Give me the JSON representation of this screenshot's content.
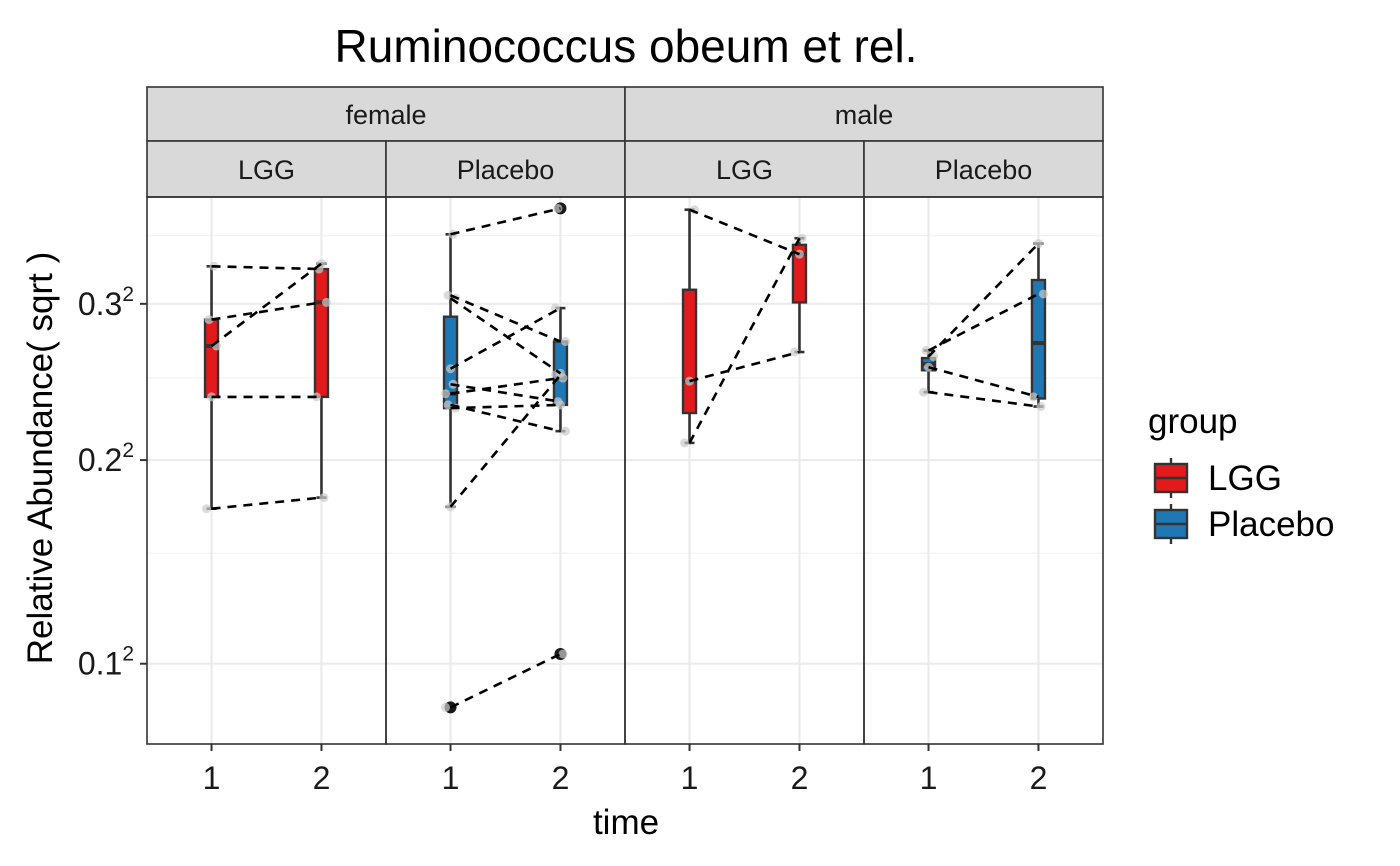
{
  "chart_data": {
    "type": "boxplot",
    "title": "Ruminococcus obeum et rel.",
    "xlabel": "time",
    "ylabel": "Relative Abundance( sqrt )",
    "y_scale": "sqrt",
    "ylim": [
      0.07,
      0.38
    ],
    "y_ticks": [
      {
        "value": 0.1,
        "base": "0.1",
        "exp": "2"
      },
      {
        "value": 0.2,
        "base": "0.2",
        "exp": "2"
      },
      {
        "value": 0.3,
        "base": "0.3",
        "exp": "2"
      }
    ],
    "x_categories": [
      "1",
      "2"
    ],
    "grid": true,
    "legend": {
      "title": "group",
      "position": "right",
      "entries": [
        {
          "name": "LGG",
          "color": "#E31A1C"
        },
        {
          "name": "Placebo",
          "color": "#1F78B4"
        }
      ]
    },
    "panels": [
      {
        "sex": "female",
        "group": "LGG",
        "color": "#E31A1C",
        "boxes": [
          {
            "time": "1",
            "whisker_low": 0.173,
            "q1": 0.238,
            "median": 0.271,
            "q3": 0.289,
            "whisker_high": 0.327,
            "outliers": []
          },
          {
            "time": "2",
            "whisker_low": 0.179,
            "q1": 0.238,
            "median": 0.301,
            "q3": 0.325,
            "whisker_high": 0.329,
            "outliers": []
          }
        ],
        "subjects": [
          [
            0.173,
            0.179
          ],
          [
            0.238,
            0.238
          ],
          [
            0.271,
            0.329
          ],
          [
            0.289,
            0.301
          ],
          [
            0.327,
            0.325
          ]
        ]
      },
      {
        "sex": "female",
        "group": "Placebo",
        "color": "#1F78B4",
        "boxes": [
          {
            "time": "1",
            "whisker_low": 0.174,
            "q1": 0.231,
            "median": 0.24,
            "q3": 0.291,
            "whisker_high": 0.351,
            "outliers": [
              0.083
            ]
          },
          {
            "time": "2",
            "whisker_low": 0.217,
            "q1": 0.233,
            "median": 0.25,
            "q3": 0.274,
            "whisker_high": 0.297,
            "outliers": [
              0.104,
              0.371
            ]
          }
        ],
        "subjects": [
          [
            0.083,
            0.104
          ],
          [
            0.174,
            0.252
          ],
          [
            0.231,
            0.233
          ],
          [
            0.233,
            0.217
          ],
          [
            0.246,
            0.235
          ],
          [
            0.24,
            0.25
          ],
          [
            0.256,
            0.297
          ],
          [
            0.304,
            0.253
          ],
          [
            0.306,
            0.274
          ],
          [
            0.351,
            0.371
          ]
        ]
      },
      {
        "sex": "male",
        "group": "LGG",
        "color": "#E31A1C",
        "boxes": [
          {
            "time": "1",
            "whisker_low": 0.21,
            "q1": 0.228,
            "median": 0.248,
            "q3": 0.31,
            "whisker_high": 0.37,
            "outliers": []
          },
          {
            "time": "2",
            "whisker_low": 0.267,
            "q1": 0.301,
            "median": 0.336,
            "q3": 0.343,
            "whisker_high": 0.348,
            "outliers": []
          }
        ],
        "subjects": [
          [
            0.21,
            0.348
          ],
          [
            0.248,
            0.267
          ],
          [
            0.37,
            0.336
          ]
        ]
      },
      {
        "sex": "male",
        "group": "Placebo",
        "color": "#1F78B4",
        "boxes": [
          {
            "time": "1",
            "whisker_low": 0.241,
            "q1": 0.255,
            "median": 0.259,
            "q3": 0.263,
            "whisker_high": 0.268,
            "outliers": []
          },
          {
            "time": "2",
            "whisker_low": 0.232,
            "q1": 0.237,
            "median": 0.273,
            "q3": 0.317,
            "whisker_high": 0.344,
            "outliers": []
          }
        ],
        "subjects": [
          [
            0.241,
            0.232
          ],
          [
            0.257,
            0.238
          ],
          [
            0.264,
            0.344
          ],
          [
            0.268,
            0.307
          ]
        ]
      }
    ]
  }
}
